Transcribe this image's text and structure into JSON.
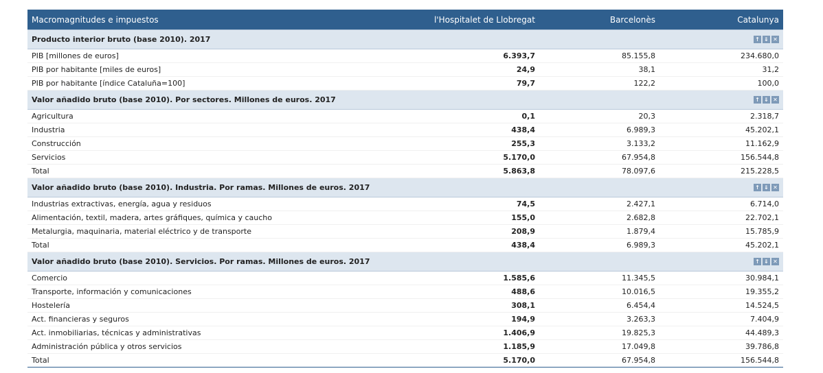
{
  "header": {
    "col0": "Macromagnitudes e impuestos",
    "col1": "l'Hospitalet de Llobregat",
    "col2": "Barcelonès",
    "col3": "Catalunya"
  },
  "controls": {
    "up": "↑",
    "down": "⇓",
    "close": "✕"
  },
  "sections": [
    {
      "title": "Producto interior bruto (base 2010). 2017",
      "rows": [
        {
          "label": "PIB [millones de euros]",
          "v1": "6.393,7",
          "v2": "85.155,8",
          "v3": "234.680,0"
        },
        {
          "label": "PIB por habitante [miles de euros]",
          "v1": "24,9",
          "v2": "38,1",
          "v3": "31,2"
        },
        {
          "label": "PIB por habitante [índice Cataluña=100]",
          "v1": "79,7",
          "v2": "122,2",
          "v3": "100,0"
        }
      ]
    },
    {
      "title": "Valor añadido bruto (base 2010). Por sectores. Millones de euros. 2017",
      "rows": [
        {
          "label": "Agricultura",
          "v1": "0,1",
          "v2": "20,3",
          "v3": "2.318,7"
        },
        {
          "label": "Industria",
          "v1": "438,4",
          "v2": "6.989,3",
          "v3": "45.202,1"
        },
        {
          "label": "Construcción",
          "v1": "255,3",
          "v2": "3.133,2",
          "v3": "11.162,9"
        },
        {
          "label": "Servicios",
          "v1": "5.170,0",
          "v2": "67.954,8",
          "v3": "156.544,8"
        },
        {
          "label": "Total",
          "v1": "5.863,8",
          "v2": "78.097,6",
          "v3": "215.228,5"
        }
      ]
    },
    {
      "title": "Valor añadido bruto (base 2010). Industria. Por ramas. Millones de euros. 2017",
      "rows": [
        {
          "label": "Industrias extractivas, energía, agua y residuos",
          "v1": "74,5",
          "v2": "2.427,1",
          "v3": "6.714,0"
        },
        {
          "label": "Alimentación, textil, madera, artes gráfiques, química y caucho",
          "v1": "155,0",
          "v2": "2.682,8",
          "v3": "22.702,1"
        },
        {
          "label": "Metalurgia, maquinaria, material eléctrico y de transporte",
          "v1": "208,9",
          "v2": "1.879,4",
          "v3": "15.785,9"
        },
        {
          "label": "Total",
          "v1": "438,4",
          "v2": "6.989,3",
          "v3": "45.202,1"
        }
      ]
    },
    {
      "title": "Valor añadido bruto (base 2010). Servicios. Por ramas. Millones de euros. 2017",
      "rows": [
        {
          "label": "Comercio",
          "v1": "1.585,6",
          "v2": "11.345,5",
          "v3": "30.984,1"
        },
        {
          "label": "Transporte, información y comunicaciones",
          "v1": "488,6",
          "v2": "10.016,5",
          "v3": "19.355,2"
        },
        {
          "label": "Hostelería",
          "v1": "308,1",
          "v2": "6.454,4",
          "v3": "14.524,5"
        },
        {
          "label": "Act. financieras y seguros",
          "v1": "194,9",
          "v2": "3.263,3",
          "v3": "7.404,9"
        },
        {
          "label": "Act. inmobiliarias, técnicas y administrativas",
          "v1": "1.406,9",
          "v2": "19.825,3",
          "v3": "44.489,3"
        },
        {
          "label": "Administración pública y otros servicios",
          "v1": "1.185,9",
          "v2": "17.049,8",
          "v3": "39.786,8"
        },
        {
          "label": "Total",
          "v1": "5.170,0",
          "v2": "67.954,8",
          "v3": "156.544,8"
        }
      ]
    }
  ]
}
